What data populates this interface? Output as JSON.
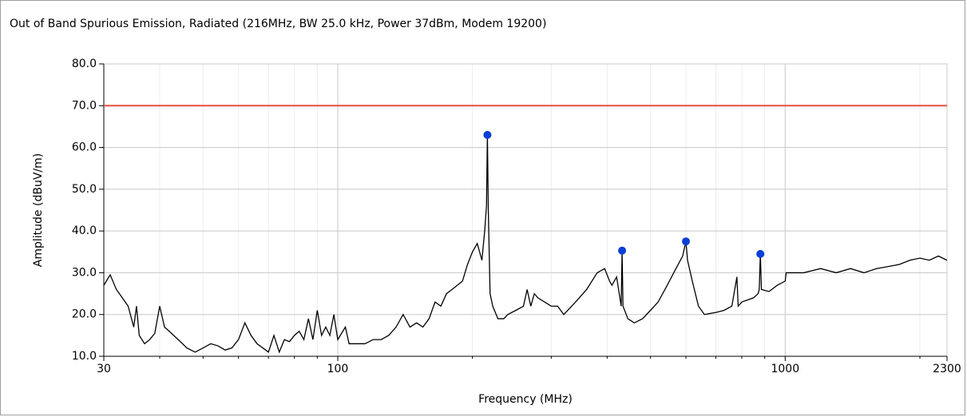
{
  "chart_data": {
    "type": "line",
    "title": "Out of Band Spurious Emission, Radiated (216MHz, BW 25.0 kHz, Power 37dBm, Modem 19200)",
    "x_label": "Frequency (MHz)",
    "y_label": "Amplitude (dBuV/m)",
    "x_scale": "log",
    "xlim": [
      30,
      2300
    ],
    "xticks": [
      30,
      100,
      1000,
      2300
    ],
    "xminorticks": [
      40,
      50,
      60,
      70,
      80,
      90,
      200,
      300,
      400,
      500,
      600,
      700,
      800,
      900,
      2000
    ],
    "ylim": [
      10,
      80
    ],
    "yticks": [
      {
        "value": 10,
        "label": "10.0"
      },
      {
        "value": 20,
        "label": "20.0"
      },
      {
        "value": 30,
        "label": "30.0"
      },
      {
        "value": 40,
        "label": "40.0"
      },
      {
        "value": 50,
        "label": "50.0"
      },
      {
        "value": 60,
        "label": "60.0"
      },
      {
        "value": 70,
        "label": "70.0"
      },
      {
        "value": 80,
        "label": "80.0"
      }
    ],
    "grid": true,
    "series": [
      {
        "mode": "line",
        "color": "#000000",
        "x": [
          30,
          31,
          32,
          33,
          34,
          35,
          35.5,
          36,
          37,
          38,
          39,
          40,
          41,
          42,
          44,
          46,
          48,
          50,
          52,
          54,
          56,
          58,
          60,
          62,
          64,
          66,
          68,
          70,
          72,
          74,
          76,
          78,
          80,
          82,
          84,
          86,
          88,
          90,
          92,
          94,
          96,
          98,
          100,
          104,
          106,
          110,
          115,
          120,
          125,
          130,
          135,
          140,
          145,
          150,
          155,
          160,
          165,
          170,
          175,
          180,
          185,
          190,
          195,
          200,
          205,
          210,
          213,
          215,
          216,
          217,
          219,
          222,
          228,
          235,
          240,
          250,
          260,
          265,
          270,
          275,
          280,
          290,
          300,
          310,
          320,
          340,
          360,
          380,
          395,
          405,
          410,
          420,
          430,
          432,
          434,
          445,
          460,
          480,
          500,
          520,
          545,
          570,
          590,
          600,
          605,
          620,
          640,
          660,
          700,
          730,
          760,
          780,
          785,
          800,
          850,
          870,
          875,
          880,
          885,
          920,
          960,
          1000,
          1005,
          1100,
          1200,
          1300,
          1400,
          1500,
          1600,
          1700,
          1800,
          1900,
          2000,
          2100,
          2200,
          2300
        ],
        "values": [
          27,
          29.5,
          26,
          24,
          22,
          17,
          22,
          15,
          13,
          14,
          15.5,
          22,
          17,
          16,
          14,
          12,
          11,
          12,
          13,
          12.5,
          11.5,
          12,
          14,
          18,
          15,
          13,
          12,
          11,
          15,
          11,
          14,
          13.5,
          15,
          16,
          14,
          19,
          14,
          21,
          15,
          17,
          15,
          20,
          14,
          17,
          13,
          13,
          13,
          14,
          14,
          15,
          17,
          20,
          17,
          18,
          17,
          19,
          23,
          22,
          25,
          26,
          27,
          28,
          32,
          35,
          37,
          33,
          40,
          46,
          63,
          45,
          25,
          22,
          19,
          19,
          20,
          21,
          22,
          26,
          22,
          25,
          24,
          23,
          22,
          22,
          20,
          23,
          26,
          30,
          31,
          28,
          27,
          29,
          22,
          35.3,
          22,
          19,
          18,
          19,
          21,
          23,
          27,
          31,
          34,
          37.5,
          33,
          28,
          22,
          20,
          20.5,
          21,
          22,
          29,
          22,
          23,
          24,
          25,
          26,
          34.5,
          26,
          25.5,
          27,
          28,
          30,
          30,
          31,
          30,
          31,
          30,
          31,
          31.5,
          32,
          33,
          33.5,
          33,
          34,
          33
        ]
      },
      {
        "mode": "line",
        "color": "#e8503a",
        "x": [
          30,
          2300
        ],
        "values": [
          70,
          70
        ]
      },
      {
        "mode": "markers",
        "color": "#0a3fd6",
        "x": [
          216,
          432,
          600,
          880
        ],
        "values": [
          63,
          35.3,
          37.5,
          34.5
        ]
      }
    ]
  }
}
